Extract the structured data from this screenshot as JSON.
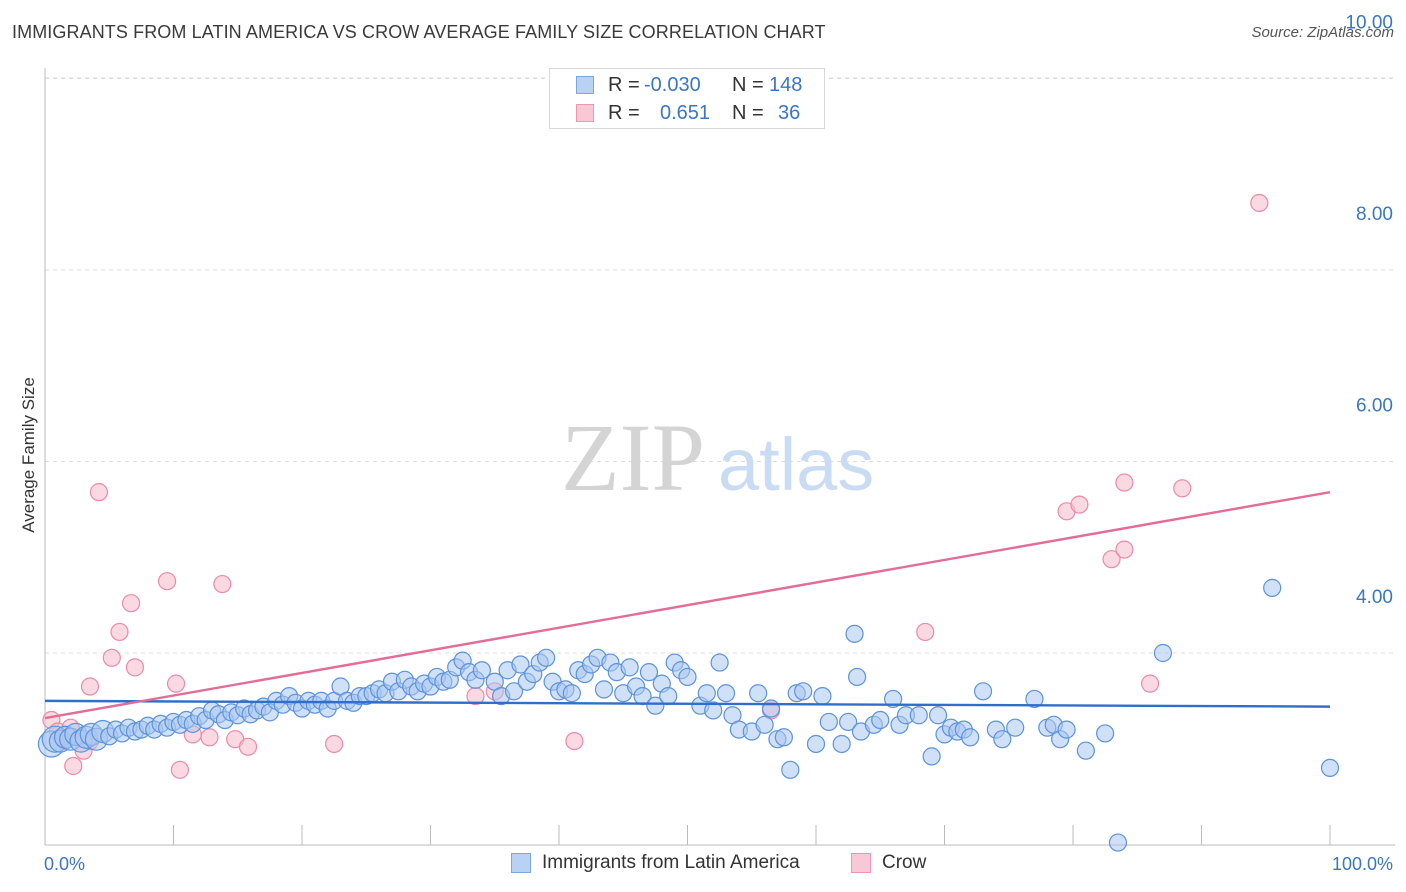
{
  "title": "IMMIGRANTS FROM LATIN AMERICA VS CROW AVERAGE FAMILY SIZE CORRELATION CHART",
  "source": "Source: ZipAtlas.com",
  "watermark": {
    "zip": "ZIP",
    "atlas": "atlas"
  },
  "stats": {
    "rows": [
      {
        "r_label": "R =",
        "r_value": "-0.030",
        "n_label": "N =",
        "n_value": "148"
      },
      {
        "r_label": "R =",
        "r_value": "0.651",
        "n_label": "N =",
        "n_value": "36"
      }
    ]
  },
  "legend": {
    "items": [
      "Immigrants from Latin America",
      "Crow"
    ]
  },
  "colors": {
    "blue_fill": "#a9c7f0",
    "blue_stroke": "#5b93dc",
    "blue_line": "#2f6fcb",
    "pink_fill": "#f7bfd0",
    "pink_stroke": "#eb8aa8",
    "pink_line": "#e36d94",
    "tick_text": "#3a76c4",
    "grid": "#dcdcdc"
  },
  "chart_data": {
    "type": "scatter",
    "title": "IMMIGRANTS FROM LATIN AMERICA VS CROW AVERAGE FAMILY SIZE CORRELATION CHART",
    "xlabel": "",
    "ylabel": "Average Family Size",
    "xlim": [
      0,
      100
    ],
    "ylim": [
      2.0,
      10.2
    ],
    "x_tick_labels": [
      "0.0%",
      "100.0%"
    ],
    "y_ticks": [
      4.0,
      6.0,
      8.0,
      10.0
    ],
    "y_tick_labels": [
      "4.00",
      "6.00",
      "8.00",
      "10.00"
    ],
    "legend_position": "bottom",
    "grid": true,
    "series": [
      {
        "name": "Immigrants from Latin America",
        "r": -0.03,
        "n": 148,
        "trend": {
          "x": [
            0,
            100
          ],
          "y": [
            3.5,
            3.44
          ]
        },
        "points": [
          {
            "x": 0.5,
            "y": 3.05,
            "s": 3
          },
          {
            "x": 0.8,
            "y": 3.1,
            "s": 3
          },
          {
            "x": 1.2,
            "y": 3.08,
            "s": 2
          },
          {
            "x": 1.6,
            "y": 3.12,
            "s": 2
          },
          {
            "x": 2.0,
            "y": 3.1,
            "s": 2
          },
          {
            "x": 2.4,
            "y": 3.15,
            "s": 2
          },
          {
            "x": 2.8,
            "y": 3.08,
            "s": 2
          },
          {
            "x": 3.2,
            "y": 3.12,
            "s": 2
          },
          {
            "x": 3.6,
            "y": 3.15,
            "s": 2
          },
          {
            "x": 4.0,
            "y": 3.1,
            "s": 2
          },
          {
            "x": 4.5,
            "y": 3.18,
            "s": 2
          },
          {
            "x": 5.0,
            "y": 3.13,
            "s": 1
          },
          {
            "x": 5.5,
            "y": 3.2,
            "s": 1
          },
          {
            "x": 6.0,
            "y": 3.16,
            "s": 1
          },
          {
            "x": 6.5,
            "y": 3.22,
            "s": 1
          },
          {
            "x": 7.0,
            "y": 3.18,
            "s": 1
          },
          {
            "x": 7.5,
            "y": 3.2,
            "s": 1
          },
          {
            "x": 8.0,
            "y": 3.24,
            "s": 1
          },
          {
            "x": 8.5,
            "y": 3.2,
            "s": 1
          },
          {
            "x": 9.0,
            "y": 3.26,
            "s": 1
          },
          {
            "x": 9.5,
            "y": 3.22,
            "s": 1
          },
          {
            "x": 10.0,
            "y": 3.28,
            "s": 1
          },
          {
            "x": 10.5,
            "y": 3.25,
            "s": 1
          },
          {
            "x": 11.0,
            "y": 3.3,
            "s": 1
          },
          {
            "x": 11.5,
            "y": 3.26,
            "s": 1
          },
          {
            "x": 12.0,
            "y": 3.34,
            "s": 1
          },
          {
            "x": 12.5,
            "y": 3.3,
            "s": 1
          },
          {
            "x": 13.0,
            "y": 3.4,
            "s": 1
          },
          {
            "x": 13.5,
            "y": 3.36,
            "s": 1
          },
          {
            "x": 14.0,
            "y": 3.3,
            "s": 1
          },
          {
            "x": 14.5,
            "y": 3.38,
            "s": 1
          },
          {
            "x": 15.0,
            "y": 3.35,
            "s": 1
          },
          {
            "x": 15.5,
            "y": 3.42,
            "s": 1
          },
          {
            "x": 16.0,
            "y": 3.36,
            "s": 1
          },
          {
            "x": 16.5,
            "y": 3.4,
            "s": 1
          },
          {
            "x": 17.0,
            "y": 3.44,
            "s": 1
          },
          {
            "x": 17.5,
            "y": 3.38,
            "s": 1
          },
          {
            "x": 18.0,
            "y": 3.5,
            "s": 1
          },
          {
            "x": 18.5,
            "y": 3.46,
            "s": 1
          },
          {
            "x": 19.0,
            "y": 3.55,
            "s": 1
          },
          {
            "x": 19.5,
            "y": 3.48,
            "s": 1
          },
          {
            "x": 20.0,
            "y": 3.42,
            "s": 1
          },
          {
            "x": 20.5,
            "y": 3.5,
            "s": 1
          },
          {
            "x": 21.0,
            "y": 3.46,
            "s": 1
          },
          {
            "x": 21.5,
            "y": 3.5,
            "s": 1
          },
          {
            "x": 22.0,
            "y": 3.42,
            "s": 1
          },
          {
            "x": 22.5,
            "y": 3.5,
            "s": 1
          },
          {
            "x": 23.0,
            "y": 3.65,
            "s": 1
          },
          {
            "x": 23.5,
            "y": 3.5,
            "s": 1
          },
          {
            "x": 24.0,
            "y": 3.48,
            "s": 1
          },
          {
            "x": 24.5,
            "y": 3.55,
            "s": 1
          },
          {
            "x": 25.0,
            "y": 3.55,
            "s": 1
          },
          {
            "x": 25.5,
            "y": 3.58,
            "s": 1
          },
          {
            "x": 26.0,
            "y": 3.62,
            "s": 1
          },
          {
            "x": 26.5,
            "y": 3.58,
            "s": 1
          },
          {
            "x": 27.0,
            "y": 3.7,
            "s": 1
          },
          {
            "x": 27.5,
            "y": 3.6,
            "s": 1
          },
          {
            "x": 28.0,
            "y": 3.72,
            "s": 1
          },
          {
            "x": 28.5,
            "y": 3.65,
            "s": 1
          },
          {
            "x": 29.0,
            "y": 3.6,
            "s": 1
          },
          {
            "x": 29.5,
            "y": 3.68,
            "s": 1
          },
          {
            "x": 30.0,
            "y": 3.65,
            "s": 1
          },
          {
            "x": 30.5,
            "y": 3.75,
            "s": 1
          },
          {
            "x": 31.0,
            "y": 3.7,
            "s": 1
          },
          {
            "x": 31.5,
            "y": 3.72,
            "s": 1
          },
          {
            "x": 32.0,
            "y": 3.85,
            "s": 1
          },
          {
            "x": 32.5,
            "y": 3.92,
            "s": 1
          },
          {
            "x": 33.0,
            "y": 3.8,
            "s": 1
          },
          {
            "x": 33.5,
            "y": 3.72,
            "s": 1
          },
          {
            "x": 34.0,
            "y": 3.82,
            "s": 1
          },
          {
            "x": 35.0,
            "y": 3.7,
            "s": 1
          },
          {
            "x": 35.5,
            "y": 3.55,
            "s": 1
          },
          {
            "x": 36.0,
            "y": 3.82,
            "s": 1
          },
          {
            "x": 36.5,
            "y": 3.6,
            "s": 1
          },
          {
            "x": 37.0,
            "y": 3.88,
            "s": 1
          },
          {
            "x": 37.5,
            "y": 3.7,
            "s": 1
          },
          {
            "x": 38.0,
            "y": 3.78,
            "s": 1
          },
          {
            "x": 38.5,
            "y": 3.9,
            "s": 1
          },
          {
            "x": 39.0,
            "y": 3.95,
            "s": 1
          },
          {
            "x": 39.5,
            "y": 3.7,
            "s": 1
          },
          {
            "x": 40.0,
            "y": 3.6,
            "s": 1
          },
          {
            "x": 40.5,
            "y": 3.62,
            "s": 1
          },
          {
            "x": 41.0,
            "y": 3.58,
            "s": 1
          },
          {
            "x": 41.5,
            "y": 3.82,
            "s": 1
          },
          {
            "x": 42.0,
            "y": 3.78,
            "s": 1
          },
          {
            "x": 42.5,
            "y": 3.88,
            "s": 1
          },
          {
            "x": 43.0,
            "y": 3.95,
            "s": 1
          },
          {
            "x": 43.5,
            "y": 3.62,
            "s": 1
          },
          {
            "x": 44.0,
            "y": 3.9,
            "s": 1
          },
          {
            "x": 44.5,
            "y": 3.8,
            "s": 1
          },
          {
            "x": 45.0,
            "y": 3.58,
            "s": 1
          },
          {
            "x": 45.5,
            "y": 3.85,
            "s": 1
          },
          {
            "x": 46.0,
            "y": 3.65,
            "s": 1
          },
          {
            "x": 46.5,
            "y": 3.55,
            "s": 1
          },
          {
            "x": 47.0,
            "y": 3.8,
            "s": 1
          },
          {
            "x": 47.5,
            "y": 3.45,
            "s": 1
          },
          {
            "x": 48.0,
            "y": 3.68,
            "s": 1
          },
          {
            "x": 48.5,
            "y": 3.55,
            "s": 1
          },
          {
            "x": 49.0,
            "y": 3.9,
            "s": 1
          },
          {
            "x": 49.5,
            "y": 3.82,
            "s": 1
          },
          {
            "x": 50.0,
            "y": 3.75,
            "s": 1
          },
          {
            "x": 51.0,
            "y": 3.45,
            "s": 1
          },
          {
            "x": 51.5,
            "y": 3.58,
            "s": 1
          },
          {
            "x": 52.0,
            "y": 3.4,
            "s": 1
          },
          {
            "x": 52.5,
            "y": 3.9,
            "s": 1
          },
          {
            "x": 53.0,
            "y": 3.58,
            "s": 1
          },
          {
            "x": 53.5,
            "y": 3.35,
            "s": 1
          },
          {
            "x": 54.0,
            "y": 3.2,
            "s": 1
          },
          {
            "x": 55.0,
            "y": 3.18,
            "s": 1
          },
          {
            "x": 55.5,
            "y": 3.58,
            "s": 1
          },
          {
            "x": 56.0,
            "y": 3.25,
            "s": 1
          },
          {
            "x": 56.5,
            "y": 3.42,
            "s": 1
          },
          {
            "x": 57.0,
            "y": 3.1,
            "s": 1
          },
          {
            "x": 57.5,
            "y": 3.12,
            "s": 1
          },
          {
            "x": 58.0,
            "y": 2.78,
            "s": 1
          },
          {
            "x": 58.5,
            "y": 3.58,
            "s": 1
          },
          {
            "x": 59.0,
            "y": 3.6,
            "s": 1
          },
          {
            "x": 60.0,
            "y": 3.05,
            "s": 1
          },
          {
            "x": 60.5,
            "y": 3.55,
            "s": 1
          },
          {
            "x": 61.0,
            "y": 3.28,
            "s": 1
          },
          {
            "x": 62.0,
            "y": 3.05,
            "s": 1
          },
          {
            "x": 62.5,
            "y": 3.28,
            "s": 1
          },
          {
            "x": 63.0,
            "y": 4.2,
            "s": 1
          },
          {
            "x": 63.2,
            "y": 3.75,
            "s": 1
          },
          {
            "x": 63.5,
            "y": 3.18,
            "s": 1
          },
          {
            "x": 64.5,
            "y": 3.25,
            "s": 1
          },
          {
            "x": 65.0,
            "y": 3.3,
            "s": 1
          },
          {
            "x": 66.0,
            "y": 3.52,
            "s": 1
          },
          {
            "x": 66.5,
            "y": 3.25,
            "s": 1
          },
          {
            "x": 67.0,
            "y": 3.35,
            "s": 1
          },
          {
            "x": 68.0,
            "y": 3.35,
            "s": 1
          },
          {
            "x": 69.0,
            "y": 2.92,
            "s": 1
          },
          {
            "x": 69.5,
            "y": 3.35,
            "s": 1
          },
          {
            "x": 70.0,
            "y": 3.15,
            "s": 1
          },
          {
            "x": 70.5,
            "y": 3.22,
            "s": 1
          },
          {
            "x": 71.0,
            "y": 3.18,
            "s": 1
          },
          {
            "x": 71.5,
            "y": 3.2,
            "s": 1
          },
          {
            "x": 72.0,
            "y": 3.12,
            "s": 1
          },
          {
            "x": 73.0,
            "y": 3.6,
            "s": 1
          },
          {
            "x": 74.0,
            "y": 3.2,
            "s": 1
          },
          {
            "x": 74.5,
            "y": 3.1,
            "s": 1
          },
          {
            "x": 75.5,
            "y": 3.22,
            "s": 1
          },
          {
            "x": 77.0,
            "y": 3.52,
            "s": 1
          },
          {
            "x": 78.0,
            "y": 3.22,
            "s": 1
          },
          {
            "x": 78.5,
            "y": 3.25,
            "s": 1
          },
          {
            "x": 79.0,
            "y": 3.1,
            "s": 1
          },
          {
            "x": 79.5,
            "y": 3.2,
            "s": 1
          },
          {
            "x": 81.0,
            "y": 2.98,
            "s": 1
          },
          {
            "x": 82.5,
            "y": 3.16,
            "s": 1
          },
          {
            "x": 83.5,
            "y": 2.02,
            "s": 1
          },
          {
            "x": 87.0,
            "y": 4.0,
            "s": 1
          },
          {
            "x": 95.5,
            "y": 4.68,
            "s": 1
          },
          {
            "x": 100.0,
            "y": 2.8,
            "s": 1
          }
        ]
      },
      {
        "name": "Crow",
        "r": 0.651,
        "n": 36,
        "trend": {
          "x": [
            0,
            100
          ],
          "y": [
            3.32,
            5.68
          ]
        },
        "points": [
          {
            "x": 0.5,
            "y": 3.3,
            "s": 1
          },
          {
            "x": 1.0,
            "y": 3.18,
            "s": 1
          },
          {
            "x": 1.5,
            "y": 3.08,
            "s": 1
          },
          {
            "x": 2.0,
            "y": 3.22,
            "s": 1
          },
          {
            "x": 2.2,
            "y": 2.82,
            "s": 1
          },
          {
            "x": 3.0,
            "y": 2.98,
            "s": 1
          },
          {
            "x": 3.5,
            "y": 3.08,
            "s": 1
          },
          {
            "x": 3.5,
            "y": 3.65,
            "s": 1
          },
          {
            "x": 4.2,
            "y": 5.68,
            "s": 1
          },
          {
            "x": 5.2,
            "y": 3.95,
            "s": 1
          },
          {
            "x": 5.8,
            "y": 4.22,
            "s": 1
          },
          {
            "x": 6.7,
            "y": 4.52,
            "s": 1
          },
          {
            "x": 7.0,
            "y": 3.85,
            "s": 1
          },
          {
            "x": 9.5,
            "y": 4.75,
            "s": 1
          },
          {
            "x": 10.2,
            "y": 3.68,
            "s": 1
          },
          {
            "x": 10.5,
            "y": 2.78,
            "s": 1
          },
          {
            "x": 11.5,
            "y": 3.15,
            "s": 1
          },
          {
            "x": 12.8,
            "y": 3.12,
            "s": 1
          },
          {
            "x": 13.8,
            "y": 4.72,
            "s": 1
          },
          {
            "x": 14.8,
            "y": 3.1,
            "s": 1
          },
          {
            "x": 15.8,
            "y": 3.02,
            "s": 1
          },
          {
            "x": 22.5,
            "y": 3.05,
            "s": 1
          },
          {
            "x": 33.5,
            "y": 3.55,
            "s": 1
          },
          {
            "x": 35.0,
            "y": 3.6,
            "s": 1
          },
          {
            "x": 41.2,
            "y": 3.08,
            "s": 1
          },
          {
            "x": 56.5,
            "y": 3.4,
            "s": 1
          },
          {
            "x": 68.5,
            "y": 4.22,
            "s": 1
          },
          {
            "x": 79.5,
            "y": 5.48,
            "s": 1
          },
          {
            "x": 80.5,
            "y": 5.55,
            "s": 1
          },
          {
            "x": 83.0,
            "y": 4.98,
            "s": 1
          },
          {
            "x": 84.0,
            "y": 5.78,
            "s": 1
          },
          {
            "x": 84.0,
            "y": 5.08,
            "s": 1
          },
          {
            "x": 86.0,
            "y": 3.68,
            "s": 1
          },
          {
            "x": 88.5,
            "y": 5.72,
            "s": 1
          },
          {
            "x": 94.5,
            "y": 8.7,
            "s": 1
          }
        ]
      }
    ]
  }
}
